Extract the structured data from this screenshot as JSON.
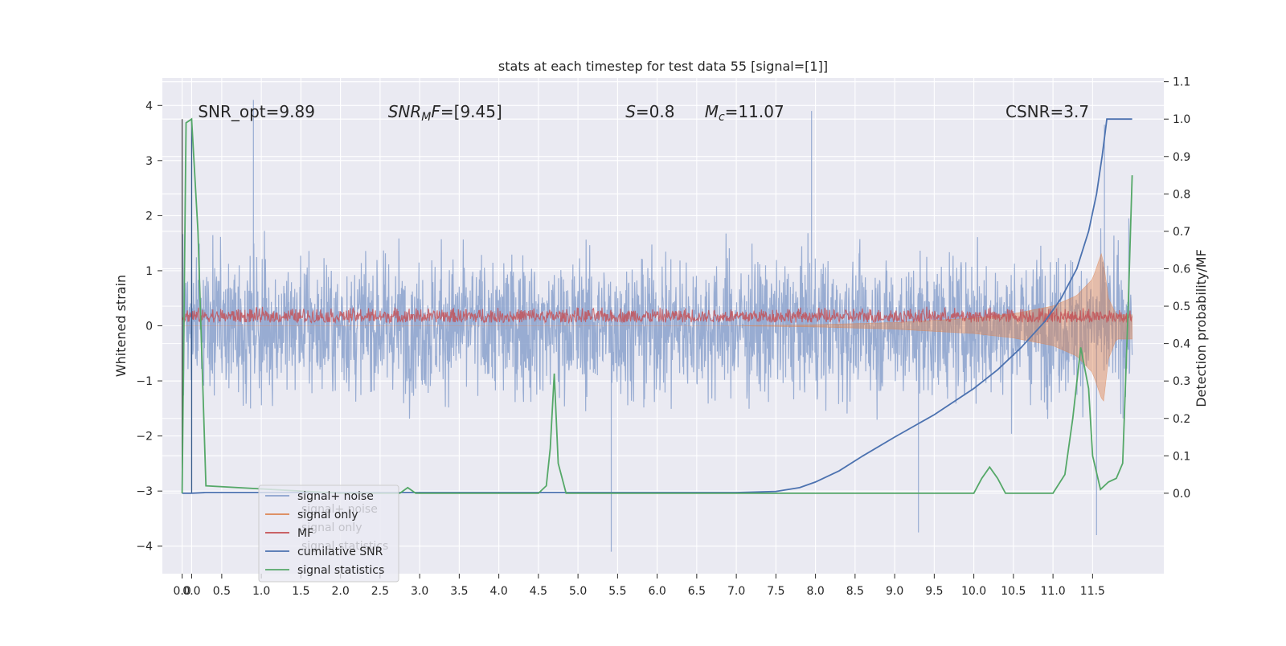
{
  "chart_data": {
    "type": "line",
    "title": "stats at each timestep for test data 55 [signal=[1]]",
    "ylabel": "Whitened strain",
    "y2label": "Detection probability/MF",
    "xlim": [
      -0.25,
      12.4
    ],
    "ylim": [
      -4.5,
      4.5
    ],
    "y2lim": [
      -0.215,
      1.11
    ],
    "xticks": [
      "0.0",
      "0.0",
      "0.5",
      "1.0",
      "1.5",
      "2.0",
      "2.5",
      "3.0",
      "3.5",
      "4.0",
      "4.5",
      "5.0",
      "5.5",
      "6.0",
      "6.5",
      "7.0",
      "7.5",
      "8.0",
      "8.5",
      "9.0",
      "9.5",
      "10.0",
      "10.5",
      "11.0",
      "11.5"
    ],
    "xtick_values": [
      0.0,
      0.12,
      0.5,
      1.0,
      1.5,
      2.0,
      2.5,
      3.0,
      3.5,
      4.0,
      4.5,
      5.0,
      5.5,
      6.0,
      6.5,
      7.0,
      7.5,
      8.0,
      8.5,
      9.0,
      9.5,
      10.0,
      10.5,
      11.0,
      11.5
    ],
    "yticks": [
      -4,
      -3,
      -2,
      -1,
      0,
      1,
      2,
      3,
      4
    ],
    "ytick_labels": [
      "−4",
      "−3",
      "−2",
      "−1",
      "0",
      "1",
      "2",
      "3",
      "4"
    ],
    "y2ticks": [
      0.0,
      0.1,
      0.2,
      0.3,
      0.4,
      0.5,
      0.6,
      0.7,
      0.8,
      0.9,
      1.0,
      1.1
    ],
    "y2tick_labels": [
      "0.0",
      "0.1",
      "0.2",
      "0.3",
      "0.4",
      "0.5",
      "0.6",
      "0.7",
      "0.8",
      "0.9",
      "1.0",
      "1.1"
    ],
    "grid": true,
    "annotations": [
      {
        "text": "SNR_opt=9.89",
        "x": 0.2,
        "y2": 1.0
      },
      {
        "text": "SNR_MF=[9.45]",
        "x": 2.6,
        "y2": 1.0
      },
      {
        "text": "S=0.8",
        "x": 5.6,
        "y2": 1.0
      },
      {
        "text": "M_c=11.07",
        "x": 6.6,
        "y2": 1.0
      },
      {
        "text": "CSNR=3.7",
        "x": 10.4,
        "y2": 1.0
      }
    ],
    "legend": {
      "placement": "lower-left",
      "entries": [
        {
          "label": "signal+ noise",
          "color": "#8aa1cd"
        },
        {
          "label": "signal only",
          "color": "#dd8452"
        },
        {
          "label": "MF",
          "color": "#c44e52"
        },
        {
          "label": "cumilative SNR",
          "color": "#4c72b0"
        },
        {
          "label": "signal statistics",
          "color": "#55a868"
        }
      ],
      "ghost_labels": [
        "signal+ noise",
        "signal only",
        "signal statistics"
      ]
    },
    "series": [
      {
        "name": "signal+ noise",
        "axis": "left",
        "color": "#8aa1cd",
        "t_range": [
          0.0,
          12.0
        ],
        "amplitude_envelope_abs": 2.0,
        "extremes": [
          [
            0.9,
            4.1
          ],
          [
            7.95,
            3.9
          ],
          [
            11.65,
            3.65
          ],
          [
            5.42,
            -4.1
          ],
          [
            11.55,
            -3.8
          ],
          [
            9.3,
            -3.75
          ]
        ]
      },
      {
        "name": "signal only",
        "axis": "left",
        "color": "#dd8452",
        "x": [
          0.0,
          7.0,
          8.0,
          9.0,
          10.0,
          10.5,
          11.0,
          11.3,
          11.5,
          11.62,
          11.7,
          11.8,
          12.0
        ],
        "envelope": [
          0.0,
          0.0,
          0.02,
          0.06,
          0.14,
          0.22,
          0.36,
          0.55,
          0.85,
          1.35,
          0.5,
          0.2,
          0.2
        ]
      },
      {
        "name": "MF",
        "axis": "left",
        "color": "#c44e52",
        "x": [
          0.0,
          12.0
        ],
        "band": [
          0.0,
          0.35
        ]
      },
      {
        "name": "cumilative SNR",
        "axis": "right",
        "color": "#4c72b0",
        "x": [
          0.0,
          0.12,
          0.3,
          1.0,
          2.0,
          4.0,
          6.0,
          7.0,
          7.5,
          7.8,
          8.0,
          8.3,
          8.6,
          9.0,
          9.5,
          10.0,
          10.3,
          10.6,
          10.9,
          11.1,
          11.3,
          11.45,
          11.55,
          11.62,
          11.68,
          12.0
        ],
        "values": [
          0.0,
          0.0,
          0.002,
          0.002,
          0.002,
          0.002,
          0.002,
          0.002,
          0.005,
          0.015,
          0.03,
          0.06,
          0.1,
          0.15,
          0.21,
          0.28,
          0.33,
          0.39,
          0.46,
          0.52,
          0.6,
          0.7,
          0.8,
          0.9,
          1.0,
          1.0
        ]
      },
      {
        "name": "signal statistics",
        "axis": "right",
        "color": "#55a868",
        "x": [
          0.0,
          0.05,
          0.12,
          0.2,
          0.3,
          2.0,
          2.75,
          2.85,
          2.95,
          4.5,
          4.6,
          4.65,
          4.7,
          4.75,
          4.85,
          9.0,
          10.0,
          10.1,
          10.2,
          10.3,
          10.4,
          10.5,
          11.0,
          11.15,
          11.25,
          11.35,
          11.45,
          11.5,
          11.6,
          11.7,
          11.8,
          11.88,
          11.95,
          12.0
        ],
        "values": [
          0.0,
          0.99,
          1.0,
          0.7,
          0.02,
          0.0,
          0.0,
          0.015,
          0.0,
          0.0,
          0.02,
          0.12,
          0.32,
          0.08,
          0.0,
          0.0,
          0.0,
          0.04,
          0.07,
          0.04,
          0.0,
          0.0,
          0.0,
          0.05,
          0.2,
          0.39,
          0.28,
          0.1,
          0.01,
          0.03,
          0.04,
          0.08,
          0.5,
          0.85
        ]
      }
    ]
  }
}
